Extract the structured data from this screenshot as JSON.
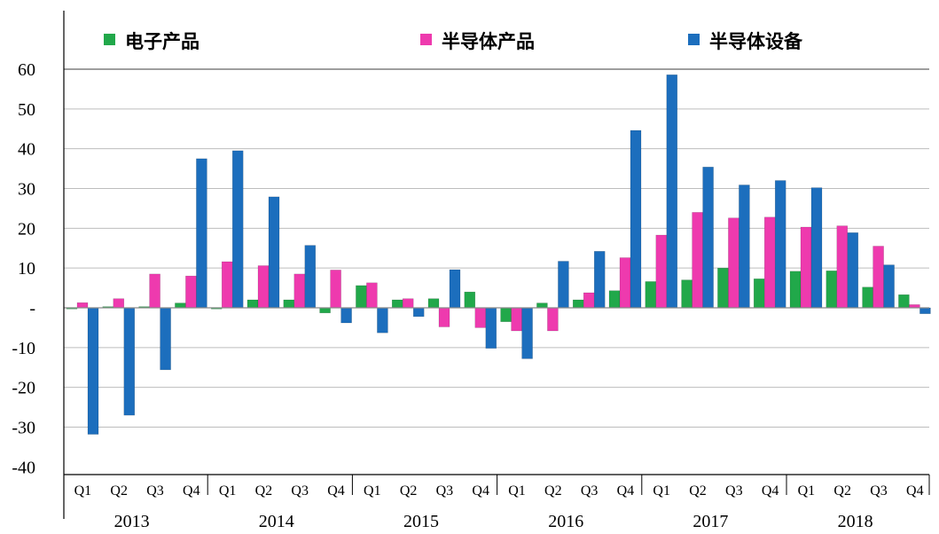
{
  "chart_data": {
    "type": "bar",
    "title": "",
    "xlabel": "",
    "ylabel": "",
    "ylim": [
      -40,
      60
    ],
    "yticks": [
      -40,
      -30,
      -20,
      -10,
      0,
      10,
      20,
      30,
      40,
      50,
      60
    ],
    "ytick_labels": [
      "-40",
      "-30",
      "-20",
      "-10",
      "-",
      "10",
      "20",
      "30",
      "40",
      "50",
      "60"
    ],
    "grid": true,
    "legend_position": "top",
    "quarters": [
      "Q1",
      "Q2",
      "Q3",
      "Q4"
    ],
    "years": [
      "2013",
      "2014",
      "2015",
      "2016",
      "2017",
      "2018"
    ],
    "categories": [
      "2013 Q1",
      "2013 Q2",
      "2013 Q3",
      "2013 Q4",
      "2014 Q1",
      "2014 Q2",
      "2014 Q3",
      "2014 Q4",
      "2015 Q1",
      "2015 Q2",
      "2015 Q3",
      "2015 Q4",
      "2016 Q1",
      "2016 Q2",
      "2016 Q3",
      "2016 Q4",
      "2017 Q1",
      "2017 Q2",
      "2017 Q3",
      "2017 Q4",
      "2018 Q1",
      "2018 Q2",
      "2018 Q3",
      "2018 Q4"
    ],
    "series": [
      {
        "name": "电子产品",
        "color": "#21a84a",
        "values": [
          -0.3,
          0.3,
          0.3,
          1.2,
          -0.3,
          2.0,
          2.0,
          -1.3,
          5.6,
          2.0,
          2.3,
          4.0,
          -3.5,
          1.2,
          2.0,
          4.3,
          6.6,
          7.0,
          10.0,
          7.3,
          9.2,
          9.3,
          5.2,
          3.3
        ]
      },
      {
        "name": "半导体产品",
        "color": "#ee3aae",
        "values": [
          1.3,
          2.3,
          8.5,
          8.0,
          11.6,
          10.6,
          8.5,
          9.5,
          6.3,
          2.3,
          -4.8,
          -5.0,
          -5.8,
          -5.8,
          3.8,
          12.6,
          18.3,
          24.0,
          22.6,
          22.8,
          20.3,
          20.6,
          15.5,
          0.8
        ]
      },
      {
        "name": "半导体设备",
        "color": "#1c6ebd",
        "values": [
          -31.8,
          -27.0,
          -15.6,
          37.5,
          39.5,
          27.9,
          15.7,
          -3.8,
          -6.3,
          -2.2,
          9.6,
          -10.2,
          -12.8,
          11.7,
          14.2,
          44.6,
          58.6,
          35.4,
          30.9,
          32.0,
          30.2,
          18.9,
          10.8,
          -1.5
        ]
      }
    ]
  }
}
